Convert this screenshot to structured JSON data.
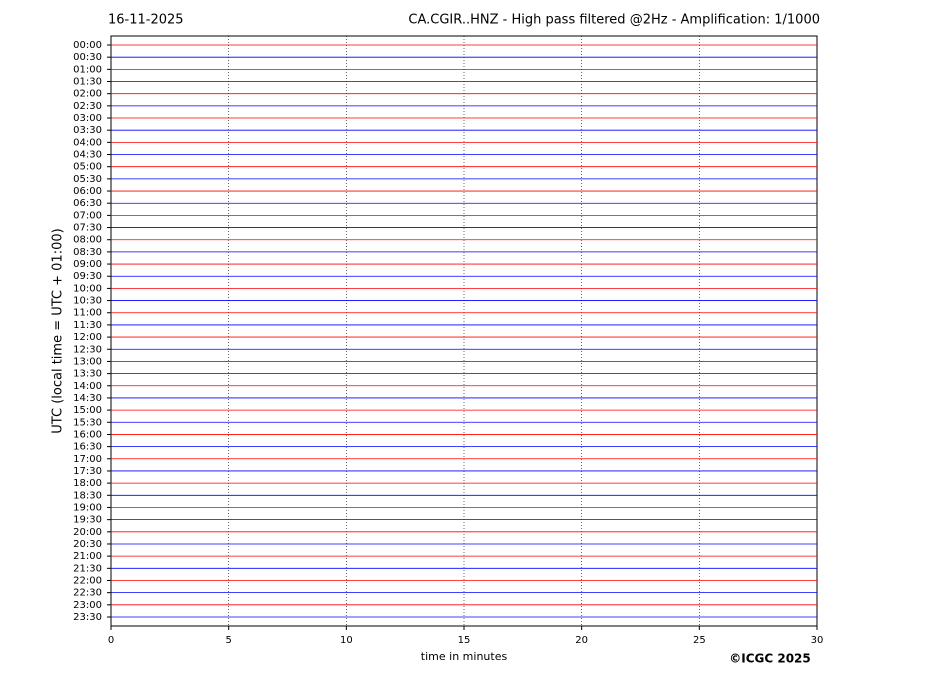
{
  "chart_data": {
    "type": "helicorder",
    "date": "16-11-2025",
    "title": "CA.CGIR..HNZ - High pass filtered @2Hz - Amplification: 1/1000",
    "ylabel": "UTC (local time = UTC + 01:00)",
    "xlabel": "time in minutes",
    "credit": "©ICGC 2025",
    "categories": [
      "00:00",
      "00:30",
      "01:00",
      "01:30",
      "02:00",
      "02:30",
      "03:00",
      "03:30",
      "04:00",
      "04:30",
      "05:00",
      "05:30",
      "06:00",
      "06:30",
      "07:00",
      "07:30",
      "08:00",
      "08:30",
      "09:00",
      "09:30",
      "10:00",
      "10:30",
      "11:00",
      "11:30",
      "12:00",
      "12:30",
      "13:00",
      "13:30",
      "14:00",
      "14:30",
      "15:00",
      "15:30",
      "16:00",
      "16:30",
      "17:00",
      "17:30",
      "18:00",
      "18:30",
      "19:00",
      "19:30",
      "20:00",
      "20:30",
      "21:00",
      "21:30",
      "22:00",
      "22:30",
      "23:00",
      "23:30"
    ],
    "trace_colors": [
      "#ff0000",
      "#0000ff"
    ],
    "xlim": [
      0,
      30
    ],
    "xticks": [
      0,
      5,
      10,
      15,
      20,
      25,
      30
    ],
    "grid": true
  }
}
